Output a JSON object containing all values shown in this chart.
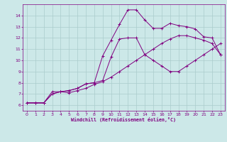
{
  "background_color": "#cce8e8",
  "grid_color": "#aacccc",
  "line_color": "#800080",
  "xlabel": "Windchill (Refroidissement éolien,°C)",
  "xlim": [
    -0.5,
    23.5
  ],
  "ylim": [
    5.5,
    15.0
  ],
  "xticks": [
    0,
    1,
    2,
    3,
    4,
    5,
    6,
    7,
    8,
    9,
    10,
    11,
    12,
    13,
    14,
    15,
    16,
    17,
    18,
    19,
    20,
    21,
    22,
    23
  ],
  "yticks": [
    6,
    7,
    8,
    9,
    10,
    11,
    12,
    13,
    14
  ],
  "curve1_x": [
    0,
    1,
    2,
    3,
    4,
    5,
    6,
    7,
    8,
    9,
    10,
    11,
    12,
    13,
    14,
    15,
    16,
    17,
    18,
    19,
    20,
    21,
    22,
    23
  ],
  "curve1_y": [
    6.2,
    6.2,
    6.2,
    7.2,
    7.2,
    7.1,
    7.3,
    7.5,
    7.85,
    8.1,
    8.5,
    9.0,
    9.5,
    10.0,
    10.5,
    11.0,
    11.5,
    11.9,
    12.2,
    12.2,
    12.0,
    11.8,
    11.5,
    10.5
  ],
  "curve2_x": [
    0,
    1,
    2,
    3,
    4,
    5,
    6,
    7,
    8,
    9,
    10,
    11,
    12,
    13,
    14,
    15,
    16,
    17,
    18,
    19,
    20,
    21,
    22,
    23
  ],
  "curve2_y": [
    6.2,
    6.2,
    6.2,
    7.0,
    7.2,
    7.3,
    7.5,
    7.9,
    8.0,
    10.4,
    11.8,
    13.2,
    14.5,
    14.5,
    13.6,
    12.85,
    12.85,
    13.3,
    13.1,
    13.0,
    12.8,
    12.1,
    12.0,
    10.5
  ],
  "curve3_x": [
    0,
    1,
    2,
    3,
    4,
    5,
    6,
    7,
    8,
    9,
    10,
    11,
    12,
    13,
    14,
    15,
    16,
    17,
    18,
    19,
    20,
    21,
    22,
    23
  ],
  "curve3_y": [
    6.2,
    6.2,
    6.2,
    7.0,
    7.2,
    7.3,
    7.5,
    7.9,
    8.0,
    8.2,
    10.3,
    11.9,
    12.0,
    12.0,
    10.5,
    10.0,
    9.5,
    9.0,
    9.0,
    9.5,
    10.0,
    10.5,
    11.0,
    11.5
  ]
}
